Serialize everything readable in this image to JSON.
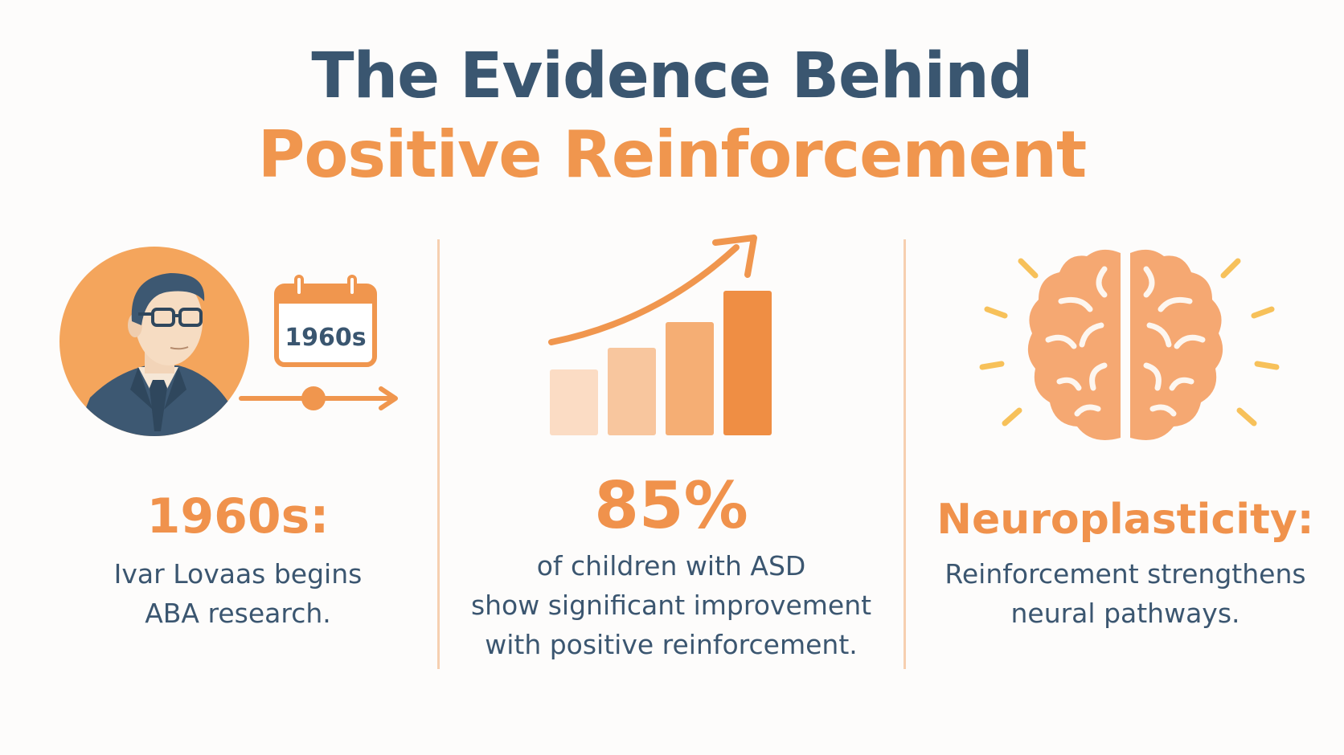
{
  "title": {
    "line1": "The Evidence Behind",
    "line2": "Positive Reinforcement"
  },
  "colors": {
    "navy": "#3a5670",
    "orange": "#f0964e",
    "divider": "#f6cfb0",
    "background": "#fdfcfb"
  },
  "columns": [
    {
      "icons": [
        "portrait-icon",
        "calendar-icon",
        "timeline-arrow-icon"
      ],
      "calendar_label": "1960s",
      "heading": "1960s:",
      "description": [
        "Ivar Lovaas begins",
        "ABA research."
      ]
    },
    {
      "icons": [
        "bar-chart-icon",
        "trend-arrow-icon"
      ],
      "bar_levels": [
        0.41,
        0.55,
        0.71,
        0.91
      ],
      "heading": "85%",
      "description": [
        "of children with ASD",
        "show significant improvement",
        "with positive reinforcement."
      ]
    },
    {
      "icons": [
        "brain-icon",
        "radiating-lines-icon"
      ],
      "heading": "Neuroplasticity:",
      "description": [
        "Reinforcement strengthens",
        "neural pathways."
      ]
    }
  ]
}
